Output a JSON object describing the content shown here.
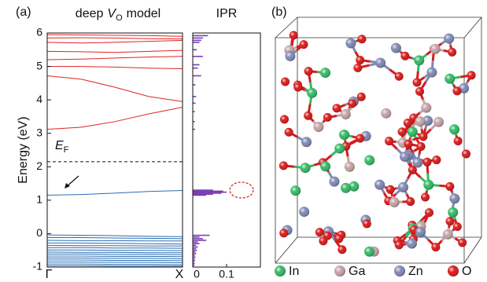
{
  "panel_a_label": "(a)",
  "chart_data": [
    {
      "type": "line",
      "title": {
        "before": "deep",
        "symbol": "V",
        "subscript": "O",
        "after": "model"
      },
      "y_label": "Energy (eV)",
      "categories": [
        "Γ",
        null,
        null,
        null,
        "X"
      ],
      "ylim": [
        -1,
        6
      ],
      "yticks": [
        -1,
        0,
        1,
        2,
        3,
        4,
        5,
        6
      ],
      "fermi_level": 2.15,
      "fermi_label": {
        "main": "E",
        "subscript": "F"
      },
      "series": [
        {
          "color": "#e02424",
          "values": [
            3.12,
            3.18,
            3.35,
            3.58,
            3.78
          ]
        },
        {
          "color": "#e02424",
          "values": [
            4.72,
            4.62,
            4.38,
            4.1,
            3.95
          ]
        },
        {
          "color": "#e02424",
          "values": [
            5.0,
            5.0,
            4.98,
            4.95,
            4.93
          ]
        },
        {
          "color": "#e02424",
          "values": [
            5.2,
            5.22,
            5.25,
            5.28,
            5.3
          ]
        },
        {
          "color": "#e02424",
          "values": [
            5.45,
            5.44,
            5.42,
            5.45,
            5.48
          ]
        },
        {
          "color": "#e02424",
          "values": [
            5.72,
            5.7,
            5.72,
            5.75,
            5.78
          ]
        },
        {
          "color": "#e02424",
          "values": [
            5.85,
            5.86,
            5.85,
            5.83,
            5.82
          ]
        },
        {
          "color": "#e02424",
          "values": [
            5.95,
            5.94,
            5.93,
            5.92,
            5.9
          ]
        },
        {
          "color": "#2a6db3",
          "values": [
            1.15,
            1.17,
            1.21,
            1.26,
            1.29
          ]
        },
        {
          "color": "#2a6db3",
          "values": [
            -0.04,
            -0.05,
            -0.06,
            -0.08,
            -0.09
          ]
        },
        {
          "color": "#2a6db3",
          "values": [
            -0.12,
            -0.12,
            -0.13,
            -0.14,
            -0.15
          ]
        },
        {
          "color": "#2a6db3",
          "values": [
            -0.2,
            -0.21,
            -0.21,
            -0.22,
            -0.22
          ]
        },
        {
          "color": "#2a6db3",
          "values": [
            -0.28,
            -0.28,
            -0.29,
            -0.3,
            -0.31
          ]
        },
        {
          "color": "#2a6db3",
          "values": [
            -0.35,
            -0.36,
            -0.36,
            -0.37,
            -0.37
          ]
        },
        {
          "color": "#2a6db3",
          "values": [
            -0.42,
            -0.42,
            -0.43,
            -0.43,
            -0.44
          ]
        },
        {
          "color": "#2a6db3",
          "values": [
            -0.49,
            -0.49,
            -0.5,
            -0.5,
            -0.51
          ]
        },
        {
          "color": "#2a6db3",
          "values": [
            -0.55,
            -0.56,
            -0.56,
            -0.57,
            -0.57
          ]
        },
        {
          "color": "#2a6db3",
          "values": [
            -0.61,
            -0.61,
            -0.62,
            -0.62,
            -0.63
          ]
        },
        {
          "color": "#2a6db3",
          "values": [
            -0.67,
            -0.67,
            -0.68,
            -0.68,
            -0.69
          ]
        },
        {
          "color": "#2a6db3",
          "values": [
            -0.73,
            -0.73,
            -0.74,
            -0.74,
            -0.75
          ]
        },
        {
          "color": "#2a6db3",
          "values": [
            -0.79,
            -0.79,
            -0.8,
            -0.8,
            -0.81
          ]
        },
        {
          "color": "#2a6db3",
          "values": [
            -0.85,
            -0.85,
            -0.86,
            -0.86,
            -0.87
          ]
        },
        {
          "color": "#2a6db3",
          "values": [
            -0.91,
            -0.91,
            -0.92,
            -0.92,
            -0.93
          ]
        },
        {
          "color": "#2a6db3",
          "values": [
            -0.96,
            -0.96,
            -0.97,
            -0.97,
            -0.97
          ]
        }
      ]
    },
    {
      "type": "hbar",
      "title": "IPR",
      "color": "#7a3fb5",
      "xlim": [
        0,
        0.2
      ],
      "xticks": [
        0,
        {
          "value": 0.1,
          "label": "0.1"
        }
      ],
      "ylim": [
        -1,
        6
      ],
      "y": [
        5.92,
        5.85,
        5.78,
        5.72,
        5.5,
        5.3,
        5.05,
        4.95,
        4.72,
        4.45,
        4.1,
        3.9,
        3.65,
        3.35,
        3.12,
        1.3,
        1.27,
        1.24,
        1.21,
        1.18,
        1.15,
        -0.05,
        -0.1,
        -0.15,
        -0.2,
        -0.25,
        -0.3,
        -0.35,
        -0.4,
        -0.45,
        -0.5,
        -0.55,
        -0.6,
        -0.65,
        -0.7,
        -0.75,
        -0.8,
        -0.85,
        -0.9,
        -0.95
      ],
      "values": [
        0.045,
        0.03,
        0.025,
        0.02,
        0.012,
        0.03,
        0.02,
        0.015,
        0.025,
        0.008,
        0.01,
        0.008,
        0.006,
        0.006,
        0.007,
        0.06,
        0.09,
        0.1,
        0.085,
        0.06,
        0.04,
        0.05,
        0.02,
        0.03,
        0.04,
        0.015,
        0.02,
        0.01,
        0.015,
        0.01,
        0.012,
        0.008,
        0.01,
        0.006,
        0.008,
        0.006,
        0.007,
        0.005,
        0.006,
        0.005
      ]
    }
  ],
  "panel_b": {
    "label": "(b)",
    "legend": [
      {
        "label": "In",
        "color": "#35b866"
      },
      {
        "label": "Ga",
        "color": "#c4a2a6"
      },
      {
        "label": "Zn",
        "color": "#7f88b3"
      },
      {
        "label": "O",
        "color": "#d81a1a"
      }
    ]
  }
}
